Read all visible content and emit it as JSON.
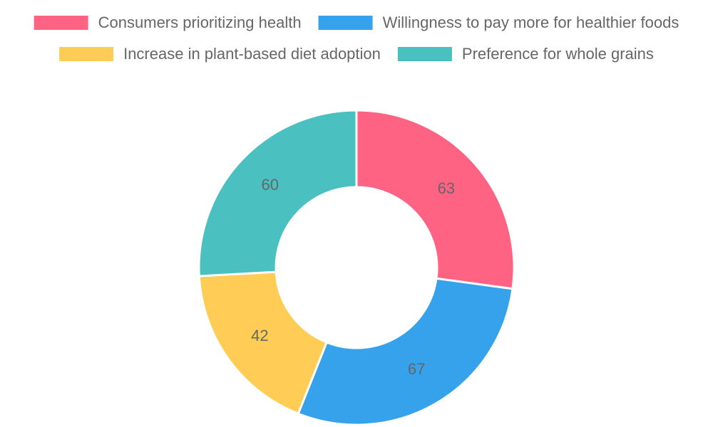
{
  "chart_data": {
    "type": "doughnut",
    "categories": [
      "Consumers prioritizing health",
      "Willingness to pay more for healthier foods",
      "Increase in plant-based diet adoption",
      "Preference for whole grains"
    ],
    "values": [
      63,
      67,
      42,
      60
    ],
    "colors": [
      "#ff6384",
      "#36a2eb",
      "#ffcd56",
      "#4bc0c0"
    ],
    "legend": "top"
  }
}
